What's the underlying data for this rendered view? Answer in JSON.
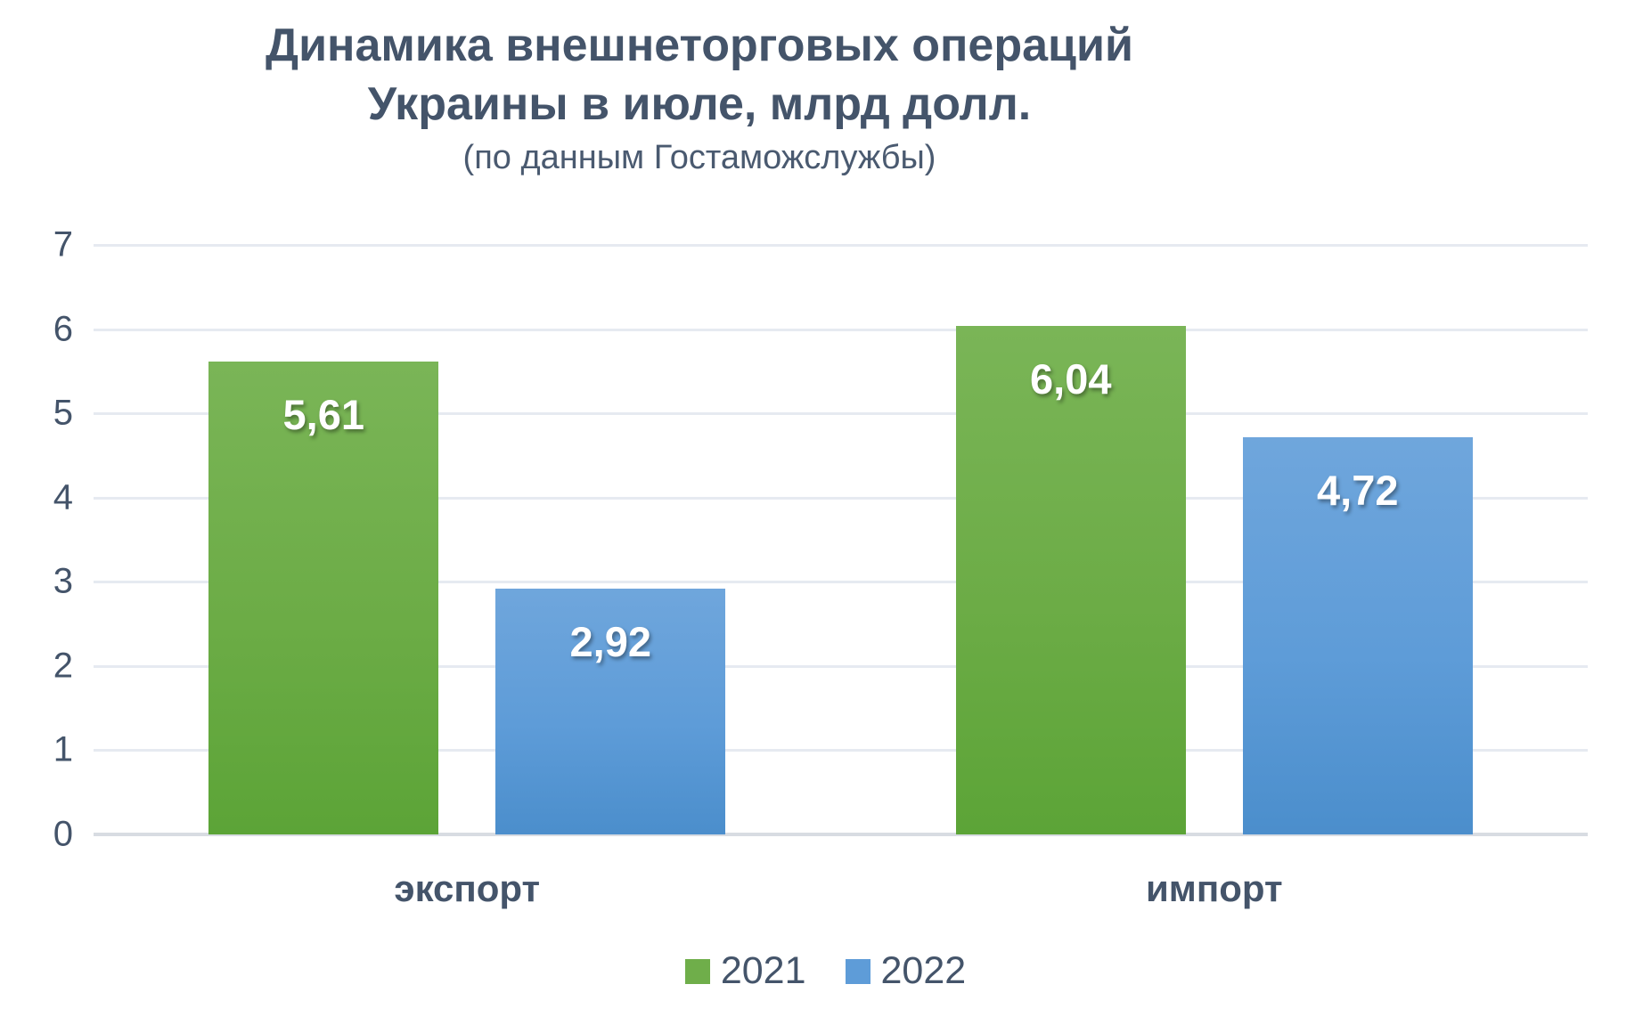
{
  "header": {
    "title_line1": "Динамика внешнеторговых операций",
    "title_line2": "Украины в июле, млрд долл.",
    "subtitle": "(по данным Гостаможслужбы)"
  },
  "colors": {
    "series_2021": "#6FAE4A",
    "series_2022": "#5E9CD8",
    "text": "#44546A",
    "gridline": "#E6EAF1",
    "axisline": "#D8DCE2",
    "bar_label": "#FFFFFF"
  },
  "chart_data": {
    "type": "bar",
    "title": "Динамика внешнеторговых операций Украины в июле, млрд долл.",
    "subtitle": "(по данным Гостаможслужбы)",
    "categories": [
      "экспорт",
      "импорт"
    ],
    "series": [
      {
        "name": "2021",
        "color": "#6FAE4A",
        "values": [
          5.61,
          6.04
        ],
        "labels": [
          "5,61",
          "6,04"
        ]
      },
      {
        "name": "2022",
        "color": "#5E9CD8",
        "values": [
          2.92,
          4.72
        ],
        "labels": [
          "2,92",
          "4,72"
        ]
      }
    ],
    "ylim": [
      0,
      7
    ],
    "ytick_step": 1,
    "ytick_labels": [
      "0",
      "1",
      "2",
      "3",
      "4",
      "5",
      "6",
      "7"
    ],
    "grid": true,
    "legend_position": "bottom",
    "legend_entries": [
      "2021",
      "2022"
    ]
  }
}
